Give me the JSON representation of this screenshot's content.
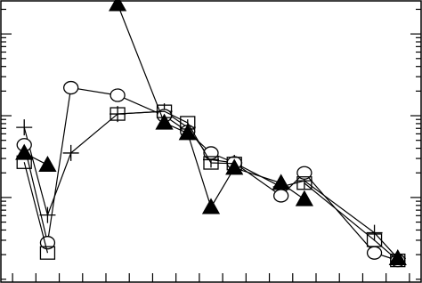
{
  "chart_data": {
    "type": "line",
    "ylog": true,
    "x": [
      1,
      2,
      3,
      5,
      7,
      8,
      9,
      10,
      12,
      13,
      16,
      17
    ],
    "xlim": [
      0,
      18
    ],
    "xticks": [
      0.5,
      1.5,
      2.5,
      3.5,
      4.5,
      5.5,
      6.5,
      7.5,
      8.5,
      9.5,
      10.5,
      11.5,
      12.5,
      13.5,
      14.5,
      15.5,
      16.5,
      17.5
    ],
    "ylim": [
      0.09,
      260
    ],
    "yticks": [
      1,
      10,
      100
    ],
    "yminorticks": [
      0.1,
      0.2,
      0.3,
      0.4,
      0.5,
      0.6,
      0.7,
      0.8,
      0.9,
      2,
      3,
      4,
      5,
      6,
      7,
      8,
      9,
      20,
      30,
      40,
      50,
      60,
      70,
      80,
      90,
      200
    ],
    "series": [
      {
        "marker": "plus",
        "color": "#000000",
        "values": [
          7.2,
          0.61,
          3.5,
          10.5,
          11.3,
          7.2,
          2.9,
          2.65,
          1.35,
          1.6,
          0.37,
          0.18
        ]
      },
      {
        "marker": "circle",
        "color": "#000000",
        "values": [
          4.4,
          0.28,
          22,
          17.8,
          10,
          6.4,
          3.5,
          2.65,
          1.05,
          2.0,
          0.21,
          0.17
        ]
      },
      {
        "marker": "square",
        "color": "#000000",
        "values": [
          2.7,
          0.21,
          null,
          10.5,
          11.3,
          8.2,
          2.65,
          2.6,
          null,
          1.5,
          0.3,
          0.17
        ]
      },
      {
        "marker": "triangle",
        "color": "#000000",
        "values": [
          3.5,
          2.5,
          null,
          230,
          8.2,
          6.1,
          0.76,
          2.3,
          1.5,
          0.95,
          null,
          0.18
        ]
      }
    ]
  }
}
